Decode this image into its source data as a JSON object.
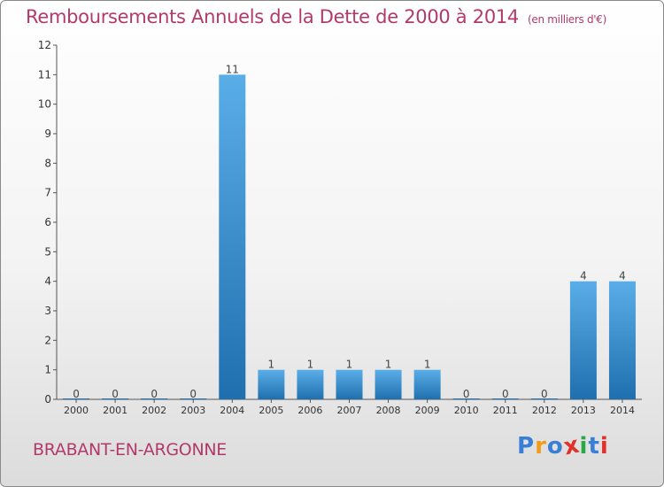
{
  "title": "Remboursements Annuels de la Dette de 2000 à 2014",
  "unit": "(en milliers d'€)",
  "commune": "BRABANT-EN-ARGONNE",
  "logo": {
    "letters": [
      "P",
      "r",
      "o",
      "x",
      "i",
      "t",
      "i"
    ],
    "colors": [
      "#3a7fd6",
      "#f19b1a",
      "#3a7fd6",
      "#e0312a",
      "#2aa845",
      "#3a7fd6",
      "#e0312a"
    ]
  },
  "colors": {
    "bar_top": "#5aaee8",
    "bar_bottom": "#1f6fae",
    "title": "#b23a6a"
  },
  "chart_data": {
    "type": "bar",
    "categories": [
      "2000",
      "2001",
      "2002",
      "2003",
      "2004",
      "2005",
      "2006",
      "2007",
      "2008",
      "2009",
      "2010",
      "2011",
      "2012",
      "2013",
      "2014"
    ],
    "values": [
      0,
      0,
      0,
      0,
      11,
      1,
      1,
      1,
      1,
      1,
      0,
      0,
      0,
      4,
      4
    ],
    "data_labels": [
      "0",
      "0",
      "0",
      "0",
      "11",
      "1",
      "1",
      "1",
      "1",
      "1",
      "0",
      "0",
      "0",
      "4",
      "4"
    ],
    "ylim": [
      0,
      12
    ],
    "yticks": [
      "0",
      "1",
      "2",
      "3",
      "4",
      "5",
      "6",
      "7",
      "8",
      "9",
      "10",
      "11",
      "12"
    ],
    "grid": false
  }
}
